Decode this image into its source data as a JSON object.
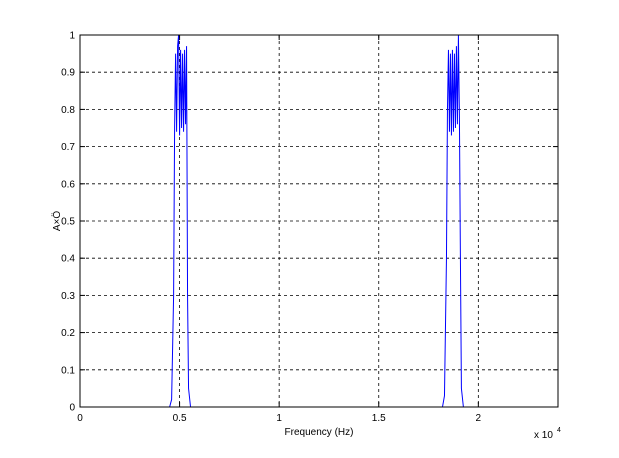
{
  "chart_data": {
    "type": "line",
    "xlabel": "Frequency (Hz)",
    "ylabel": "A×Ö",
    "x_scale_label": "x 10",
    "x_scale_exponent": "4",
    "xlim": [
      0,
      2.4
    ],
    "xticks": [
      0,
      0.5,
      1,
      1.5,
      2
    ],
    "ylim": [
      0,
      1
    ],
    "yticks": [
      0,
      0.1,
      0.2,
      0.3,
      0.4,
      0.5,
      0.6,
      0.7,
      0.8,
      0.9,
      1
    ],
    "grid": true,
    "series": [
      {
        "color": "#0000ff",
        "x": [
          0,
          0.45,
          0.46,
          0.47,
          0.475,
          0.48,
          0.485,
          0.49,
          0.495,
          0.5,
          0.505,
          0.51,
          0.515,
          0.52,
          0.525,
          0.53,
          0.535,
          0.54,
          0.545,
          0.555,
          1.82,
          1.83,
          1.84,
          1.845,
          1.85,
          1.855,
          1.86,
          1.865,
          1.87,
          1.875,
          1.88,
          1.885,
          1.89,
          1.895,
          1.9,
          1.905,
          1.91,
          1.915,
          1.925,
          2.4
        ],
        "values": [
          0,
          0,
          0.02,
          0.3,
          0.75,
          0.95,
          0.74,
          0.97,
          1.0,
          0.73,
          0.96,
          0.75,
          0.95,
          0.74,
          0.96,
          0.76,
          0.97,
          0.3,
          0.05,
          0,
          0,
          0.03,
          0.4,
          0.8,
          0.96,
          0.74,
          0.95,
          0.73,
          0.96,
          0.74,
          0.95,
          0.75,
          0.97,
          0.76,
          1.0,
          0.78,
          0.4,
          0.05,
          0,
          0
        ]
      }
    ]
  }
}
